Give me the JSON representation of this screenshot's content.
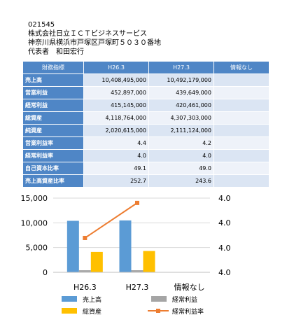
{
  "header": {
    "code": "021545",
    "company": "株式会社日立ＩＣＴビジネスサービス",
    "address": "神奈川県横浜市戸塚区戸塚町５０３０番地",
    "representative": "代表者　和田宏行"
  },
  "table": {
    "columns": [
      "財務指標",
      "H26.3",
      "H27.3",
      "情報なし"
    ],
    "rows": [
      [
        "売上高",
        "10,408,495,000",
        "10,492,179,000"
      ],
      [
        "営業利益",
        "452,897,000",
        "439,649,000"
      ],
      [
        "経常利益",
        "415,145,000",
        "420,461,000"
      ],
      [
        "総資産",
        "4,118,764,000",
        "4,307,303,000"
      ],
      [
        "純資産",
        "2,020,615,000",
        "2,111,124,000"
      ],
      [
        "営業利益率",
        "4.4",
        "4.2"
      ],
      [
        "経常利益率",
        "4.0",
        "4.0"
      ],
      [
        "自己資本比率",
        "49.1",
        "49.0"
      ],
      [
        "売上高資産比率",
        "252.7",
        "243.6"
      ]
    ]
  },
  "chart_data": {
    "type": "bar",
    "categories": [
      "H26.3",
      "H27.3",
      "情報なし"
    ],
    "series": [
      {
        "name": "売上高",
        "color": "#5b9bd5",
        "values": [
          10408,
          10492,
          null
        ]
      },
      {
        "name": "経常利益",
        "color": "#a5a5a5",
        "values": [
          415,
          420,
          null
        ]
      },
      {
        "name": "総資産",
        "color": "#ffc000",
        "values": [
          4119,
          4307,
          null
        ]
      },
      {
        "name": "経常利益率",
        "color": "#ed7d31",
        "type": "line",
        "axis": "y2",
        "values": [
          3.9885,
          4.0074,
          null
        ]
      }
    ],
    "ylim": [
      0,
      15000
    ],
    "yticks": [
      0,
      {
        "value": 5000,
        "label": "5,000"
      },
      {
        "value": 10000,
        "label": "10,000"
      },
      {
        "value": 15000,
        "label": "15,000"
      }
    ],
    "y2lim": [
      3.97,
      4.01
    ],
    "y2ticks": [
      {
        "value": 3.97,
        "label": "4.0"
      },
      {
        "value": 3.9833,
        "label": "4.0"
      },
      {
        "value": 3.9967,
        "label": "4.0"
      },
      {
        "value": 4.01,
        "label": "4.0"
      }
    ]
  }
}
